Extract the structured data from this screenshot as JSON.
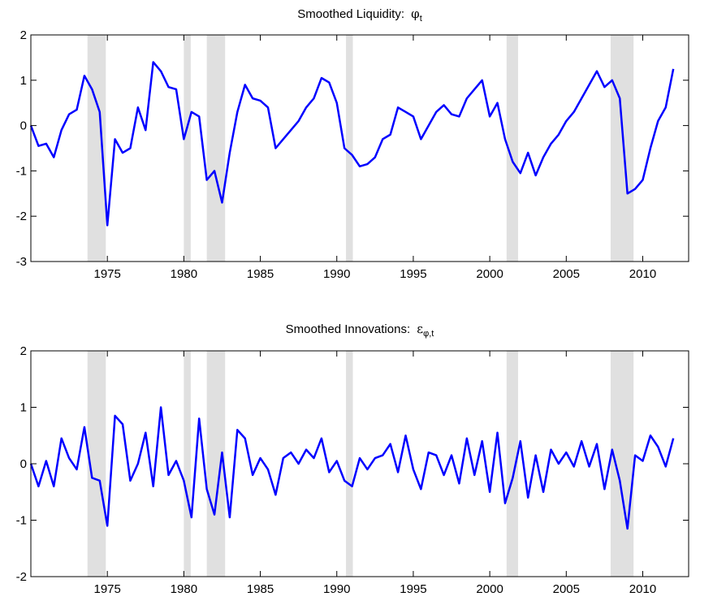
{
  "chart_data": [
    {
      "type": "line",
      "title": "Smoothed Liquidity: ",
      "title_symbol": "φ",
      "title_subscript": "t",
      "color": "#0000ff",
      "shade_color": "#e0e0e0",
      "x": [
        1970,
        1970.5,
        1971,
        1971.5,
        1972,
        1972.5,
        1973,
        1973.5,
        1974,
        1974.5,
        1975,
        1975.5,
        1976,
        1976.5,
        1977,
        1977.5,
        1978,
        1978.5,
        1979,
        1979.5,
        1980,
        1980.5,
        1981,
        1981.5,
        1982,
        1982.5,
        1983,
        1983.5,
        1984,
        1984.5,
        1985,
        1985.5,
        1986,
        1986.5,
        1987,
        1987.5,
        1988,
        1988.5,
        1989,
        1989.5,
        1990,
        1990.5,
        1991,
        1991.5,
        1992,
        1992.5,
        1993,
        1993.5,
        1994,
        1994.5,
        1995,
        1995.5,
        1996,
        1996.5,
        1997,
        1997.5,
        1998,
        1998.5,
        1999,
        1999.5,
        2000,
        2000.5,
        2001,
        2001.5,
        2002,
        2002.5,
        2003,
        2003.5,
        2004,
        2004.5,
        2005,
        2005.5,
        2006,
        2006.5,
        2007,
        2007.5,
        2008,
        2008.5,
        2009,
        2009.5,
        2010,
        2010.5,
        2011,
        2011.5,
        2012
      ],
      "values": [
        0,
        -0.45,
        -0.4,
        -0.7,
        -0.1,
        0.25,
        0.35,
        1.1,
        0.8,
        0.3,
        -2.2,
        -0.3,
        -0.6,
        -0.5,
        0.4,
        -0.1,
        1.4,
        1.2,
        0.85,
        0.8,
        -0.3,
        0.3,
        0.2,
        -1.2,
        -1.0,
        -1.7,
        -0.6,
        0.3,
        0.9,
        0.6,
        0.55,
        0.4,
        -0.5,
        -0.3,
        -0.1,
        0.1,
        0.4,
        0.6,
        1.05,
        0.95,
        0.5,
        -0.5,
        -0.65,
        -0.9,
        -0.85,
        -0.7,
        -0.3,
        -0.2,
        0.4,
        0.3,
        0.2,
        -0.3,
        0.0,
        0.3,
        0.45,
        0.25,
        0.2,
        0.6,
        0.8,
        1.0,
        0.2,
        0.5,
        -0.3,
        -0.8,
        -1.05,
        -0.6,
        -1.1,
        -0.7,
        -0.4,
        -0.2,
        0.1,
        0.3,
        0.6,
        0.9,
        1.2,
        0.85,
        1.0,
        0.6,
        -1.5,
        -1.4,
        -1.2,
        -0.5,
        0.1,
        0.4,
        1.25
      ],
      "shaded_regions": [
        [
          1973.7,
          1974.9
        ],
        [
          1980.0,
          1980.45
        ],
        [
          1981.5,
          1982.7
        ],
        [
          1990.6,
          1991.05
        ],
        [
          2001.1,
          2001.85
        ],
        [
          2007.9,
          2009.4
        ]
      ],
      "xlim": [
        1970,
        2013
      ],
      "xticks": [
        1975,
        1980,
        1985,
        1990,
        1995,
        2000,
        2005,
        2010
      ],
      "ylim": [
        -3,
        2
      ],
      "yticks": [
        -3,
        -2,
        -1,
        0,
        1,
        2
      ]
    },
    {
      "type": "line",
      "title": "Smoothed Innovations: ",
      "title_symbol": "ε",
      "title_subscript": "φ,t",
      "color": "#0000ff",
      "shade_color": "#e0e0e0",
      "x": [
        1970,
        1970.5,
        1971,
        1971.5,
        1972,
        1972.5,
        1973,
        1973.5,
        1974,
        1974.5,
        1975,
        1975.5,
        1976,
        1976.5,
        1977,
        1977.5,
        1978,
        1978.5,
        1979,
        1979.5,
        1980,
        1980.5,
        1981,
        1981.5,
        1982,
        1982.5,
        1983,
        1983.5,
        1984,
        1984.5,
        1985,
        1985.5,
        1986,
        1986.5,
        1987,
        1987.5,
        1988,
        1988.5,
        1989,
        1989.5,
        1990,
        1990.5,
        1991,
        1991.5,
        1992,
        1992.5,
        1993,
        1993.5,
        1994,
        1994.5,
        1995,
        1995.5,
        1996,
        1996.5,
        1997,
        1997.5,
        1998,
        1998.5,
        1999,
        1999.5,
        2000,
        2000.5,
        2001,
        2001.5,
        2002,
        2002.5,
        2003,
        2003.5,
        2004,
        2004.5,
        2005,
        2005.5,
        2006,
        2006.5,
        2007,
        2007.5,
        2008,
        2008.5,
        2009,
        2009.5,
        2010,
        2010.5,
        2011,
        2011.5,
        2012
      ],
      "values": [
        0,
        -0.4,
        0.05,
        -0.4,
        0.45,
        0.1,
        -0.1,
        0.65,
        -0.25,
        -0.3,
        -1.1,
        0.85,
        0.7,
        -0.3,
        0.0,
        0.55,
        -0.4,
        1.0,
        -0.2,
        0.05,
        -0.3,
        -0.95,
        0.8,
        -0.45,
        -0.9,
        0.2,
        -0.95,
        0.6,
        0.45,
        -0.2,
        0.1,
        -0.1,
        -0.55,
        0.1,
        0.2,
        0.0,
        0.25,
        0.1,
        0.45,
        -0.15,
        0.05,
        -0.3,
        -0.4,
        0.1,
        -0.1,
        0.1,
        0.15,
        0.35,
        -0.15,
        0.5,
        -0.1,
        -0.45,
        0.2,
        0.15,
        -0.2,
        0.15,
        -0.35,
        0.45,
        -0.2,
        0.4,
        -0.5,
        0.55,
        -0.7,
        -0.25,
        0.4,
        -0.6,
        0.15,
        -0.5,
        0.25,
        0.0,
        0.2,
        -0.05,
        0.4,
        -0.05,
        0.35,
        -0.45,
        0.25,
        -0.3,
        -1.15,
        0.15,
        0.05,
        0.5,
        0.3,
        -0.05,
        0.45
      ],
      "shaded_regions": [
        [
          1973.7,
          1974.9
        ],
        [
          1980.0,
          1980.45
        ],
        [
          1981.5,
          1982.7
        ],
        [
          1990.6,
          1991.05
        ],
        [
          2001.1,
          2001.85
        ],
        [
          2007.9,
          2009.4
        ]
      ],
      "xlim": [
        1970,
        2013
      ],
      "xticks": [
        1975,
        1980,
        1985,
        1990,
        1995,
        2000,
        2005,
        2010
      ],
      "ylim": [
        -2,
        2
      ],
      "yticks": [
        -2,
        -1,
        0,
        1,
        2
      ]
    }
  ]
}
